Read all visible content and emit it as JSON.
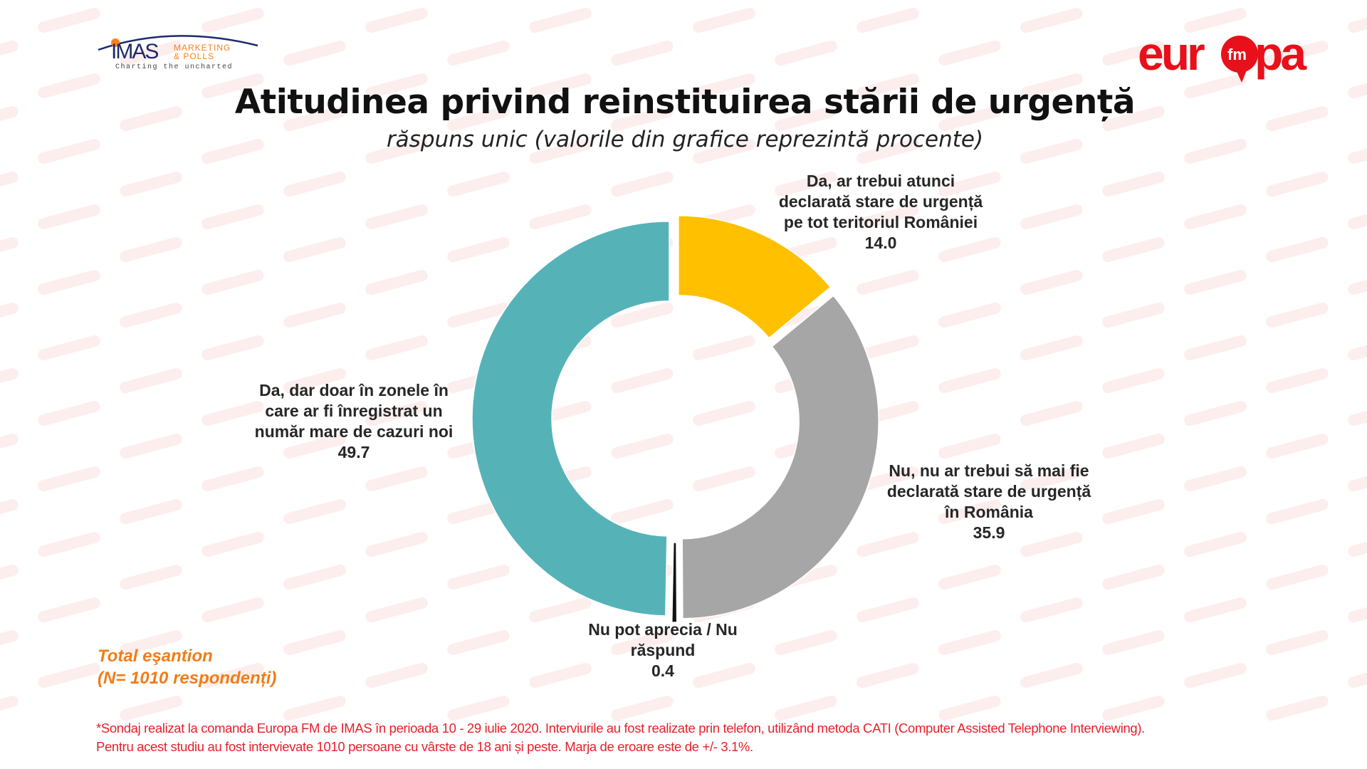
{
  "watermark": "europa",
  "logos": {
    "left": "IMAS MARKETING & POLLS — Charting the uncharted",
    "right": "europa fm"
  },
  "chart_data": {
    "type": "pie",
    "variant": "donut",
    "title": "Atitudinea privind reinstituirea stării de urgență",
    "subtitle": "răspuns unic (valorile din grafice reprezintă procente)",
    "slices": [
      {
        "label_lines": [
          "Da, ar trebui atunci",
          "declarată stare de urgență",
          "pe tot teritoriul României"
        ],
        "value": 14.0,
        "value_label": "14.0",
        "color": "#ffc000"
      },
      {
        "label_lines": [
          "Nu, nu ar trebui să mai fie",
          "declarată stare de urgență",
          "în România"
        ],
        "value": 35.9,
        "value_label": "35.9",
        "color": "#a6a6a6"
      },
      {
        "label_lines": [
          "Nu pot aprecia / Nu",
          "răspund"
        ],
        "value": 0.4,
        "value_label": "0.4",
        "color": "#111111"
      },
      {
        "label_lines": [
          "Da, dar doar în zonele în",
          "care ar fi înregistrat un",
          "număr mare de cazuri noi"
        ],
        "value": 49.7,
        "value_label": "49.7",
        "color": "#55b3b8"
      }
    ]
  },
  "sample": {
    "line1": "Total eşantion",
    "line2": "(N= 1010 respondenți)"
  },
  "footer": {
    "line1": "*Sondaj realizat la comanda Europa FM de IMAS în perioada  10 - 29 iulie 2020. Interviurile au fost realizate prin telefon, utilizând metoda CATI (Computer Assisted Telephone Interviewing).",
    "line2": "Pentru acest studiu au fost intervievate 1010 persoane cu vârste de 18 ani și peste. Marja de eroare este de +/- 3.1%."
  },
  "colors": {
    "accent": "#e8202a",
    "orange": "#f07d1a"
  }
}
